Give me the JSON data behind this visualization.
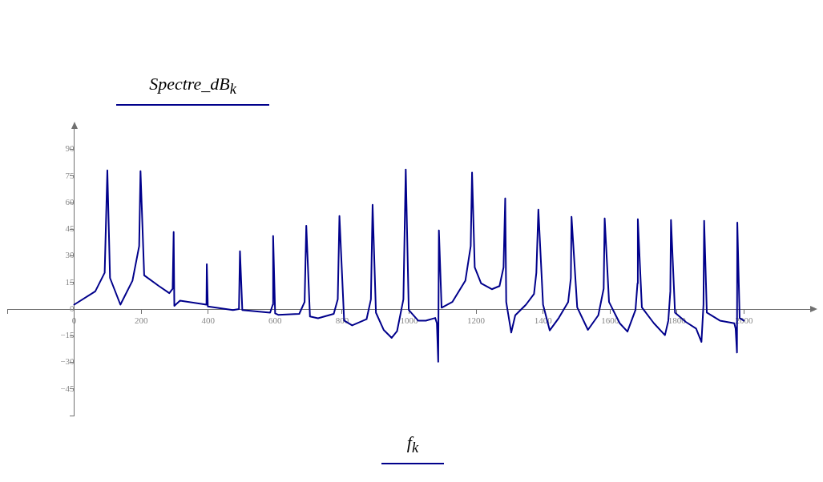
{
  "chart_data": {
    "type": "line",
    "xlabel": "f$_{k}$",
    "ylabel": "Spectre_dB$_{k}$",
    "x": [
      0,
      63,
      91,
      99,
      107,
      138,
      174,
      194,
      198,
      209,
      253,
      284,
      294,
      297,
      299,
      316,
      395,
      396,
      399,
      474,
      492,
      495,
      502,
      585,
      593,
      594,
      600,
      609,
      672,
      688,
      693,
      704,
      728,
      775,
      787,
      792,
      806,
      830,
      873,
      886,
      891,
      901,
      924,
      948,
      964,
      983,
      990,
      999,
      1027,
      1050,
      1078,
      1083,
      1087,
      1089,
      1097,
      1129,
      1168,
      1184,
      1188,
      1196,
      1215,
      1247,
      1270,
      1282,
      1287,
      1290,
      1305,
      1317,
      1349,
      1373,
      1380,
      1386,
      1400,
      1420,
      1447,
      1475,
      1483,
      1485,
      1502,
      1534,
      1565,
      1581,
      1584,
      1597,
      1629,
      1652,
      1676,
      1682,
      1683,
      1695,
      1731,
      1764,
      1774,
      1780,
      1782,
      1794,
      1826,
      1857,
      1873,
      1879,
      1881,
      1889,
      1928,
      1971,
      1975,
      1979,
      1980,
      1987,
      1999
    ],
    "series": [
      {
        "color": "#00008b",
        "values": [
          2.5,
          10,
          20.5,
          78.2,
          17.5,
          2.5,
          16,
          35.5,
          77.8,
          19,
          13,
          9,
          11.5,
          43.4,
          1.8,
          4.8,
          2.5,
          25.3,
          1.5,
          -0.5,
          0,
          32.6,
          -0.5,
          -2,
          2.5,
          41.2,
          -2.4,
          -3.2,
          -2.7,
          4,
          47,
          -4.2,
          -5.2,
          -2.7,
          5.5,
          52.5,
          -6.5,
          -9.2,
          -5.7,
          5.5,
          58.8,
          -2,
          -11.7,
          -16.2,
          -12.5,
          5.5,
          78.7,
          -0.5,
          -6.5,
          -6.5,
          -5,
          -8,
          -29.7,
          44.3,
          0.8,
          4,
          16,
          35.5,
          76.9,
          23.5,
          14.5,
          11.2,
          13,
          23.5,
          62.4,
          4,
          -13.2,
          -3.5,
          2.5,
          8.5,
          20.5,
          56.1,
          2.5,
          -12,
          -5,
          4,
          17.5,
          52,
          1,
          -11.7,
          -3.5,
          11.5,
          51.1,
          4,
          -8,
          -12.7,
          -0.5,
          14.5,
          50.7,
          1,
          -8,
          -14.7,
          -6.5,
          10,
          50.2,
          -2,
          -7.2,
          -11,
          -18.5,
          2.5,
          49.8,
          -2,
          -6.5,
          -8,
          -11,
          -24.5,
          48.8,
          -5,
          -6.5
        ]
      }
    ],
    "xlim": [
      -200,
      2200
    ],
    "ylim": [
      -60,
      102
    ],
    "xticks": [
      {
        "value": -200,
        "label": null
      },
      0,
      200,
      400,
      600,
      800,
      1000,
      1200,
      1400,
      1600,
      1800,
      2000
    ],
    "yticks": [
      {
        "value": -60,
        "label": null
      },
      {
        "value": -45,
        "label": "−45"
      },
      {
        "value": -30,
        "label": "−30"
      },
      {
        "value": -15,
        "label": "−15"
      },
      0,
      15,
      30,
      45,
      60,
      75,
      90
    ],
    "grid": false,
    "legend": false,
    "marker": "none",
    "line_style": "solid"
  }
}
